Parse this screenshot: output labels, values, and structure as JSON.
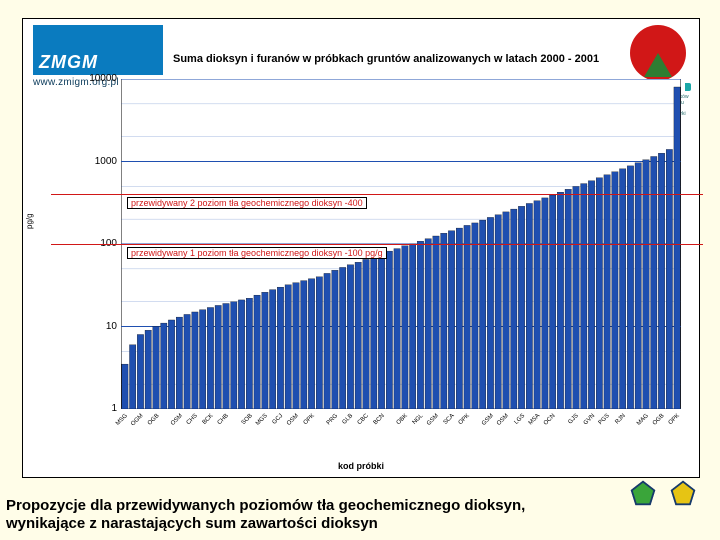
{
  "slide": {
    "background_color": "#fffde8",
    "panel_bg": "#ffffff",
    "panel_border": "#000000"
  },
  "logos": {
    "left": {
      "text": "ZMGM",
      "url": "www.zmigm.org.pl",
      "bg": "#0a7bbf",
      "text_color": "#ffffff"
    },
    "right": {
      "caption": "Dofinansowano ze środków\nNarodowego Funduszu Ochrony\nŚrodowiska i Gospodarki Wodnej",
      "circle": "#d11717",
      "leaf": "#2e7d32"
    }
  },
  "chart": {
    "type": "bar",
    "title": "Suma dioksyn i furanów w próbkach gruntów analizowanych w latach 2000 - 2001",
    "title_fontsize": 11,
    "ylabel": "pg/g",
    "xlabel": "kod próbki",
    "yscale": "log",
    "ylim": [
      1,
      10000
    ],
    "yticks": [
      1,
      10,
      100,
      1000,
      10000
    ],
    "ytick_labels": [
      "1",
      "10",
      "100",
      "1000",
      "10000"
    ],
    "grid_color": "#1f4fb0",
    "bar_color": "#1f4fb0",
    "bar_border": "#000000",
    "plot_bg": "#ffffff",
    "n_bars": 72,
    "values": [
      3.5,
      6,
      8,
      9,
      10,
      11,
      12,
      13,
      14,
      15,
      16,
      17,
      18,
      19,
      20,
      21,
      22,
      24,
      26,
      28,
      30,
      32,
      34,
      36,
      38,
      40,
      44,
      48,
      52,
      56,
      60,
      65,
      70,
      76,
      82,
      88,
      95,
      100,
      108,
      116,
      125,
      135,
      145,
      156,
      168,
      180,
      195,
      210,
      226,
      245,
      265,
      286,
      310,
      335,
      362,
      392,
      425,
      460,
      498,
      540,
      585,
      635,
      690,
      750,
      815,
      885,
      965,
      1050,
      1150,
      1260,
      1400,
      8000
    ],
    "x_tick_labels": [
      "MSG",
      "OGM",
      "OGB",
      "OSM",
      "CHS",
      "BCK",
      "CHB",
      "SOB",
      "MGS",
      "GCJ",
      "OSM",
      "OPK",
      "PRG",
      "GLB",
      "CBC",
      "BCN",
      "OBK",
      "NGL",
      "GSM",
      "SCA",
      "OPK",
      "GSM",
      "OSM",
      "LGS",
      "MSA",
      "OCN",
      "GJS",
      "GVN",
      "PGS",
      "RJN",
      "MAG",
      "OGB",
      "OPK"
    ],
    "annotations": [
      {
        "text": "przewidywany 2 poziom tła geochemicznego dioksyn -400",
        "y_value": 400
      },
      {
        "text": "przewidywany 1 poziom tła geochemicznego dioksyn -100 pg/g",
        "y_value": 100
      }
    ]
  },
  "caption": {
    "line1": "Propozycje dla przewidywanych poziomów tła geochemicznego dioksyn,",
    "line2": "wynikające z narastających sum zawartości dioksyn"
  },
  "pentagons": {
    "colors": [
      "#2e7dd1",
      "#d11717",
      "#3aa53a",
      "#e6c414"
    ],
    "stroke": "#173a6b"
  }
}
